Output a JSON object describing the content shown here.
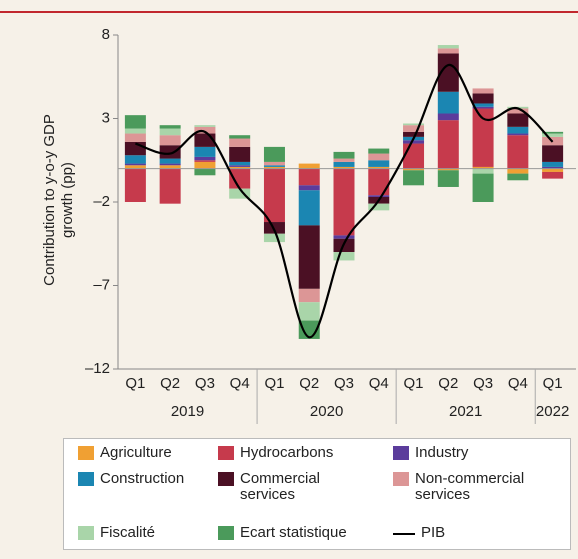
{
  "chart_data": {
    "type": "stacked_bar_line",
    "y_label": [
      "Contribution to y-o-y  GDP",
      "growth (pp)"
    ],
    "categories": [
      "Q1",
      "Q2",
      "Q3",
      "Q4",
      "Q1",
      "Q2",
      "Q3",
      "Q4",
      "Q1",
      "Q2",
      "Q3",
      "Q4",
      "Q1"
    ],
    "year_groups": [
      {
        "label": "2019",
        "span": 4
      },
      {
        "label": "2020",
        "span": 4
      },
      {
        "label": "2021",
        "span": 4
      },
      {
        "label": "2022",
        "span": 1
      }
    ],
    "ylim": [
      -12,
      8
    ],
    "yticks": [
      8,
      3,
      {
        "value": -2,
        "label": "–2"
      },
      {
        "value": -7,
        "label": "–7"
      },
      {
        "value": -12,
        "label": "–12"
      }
    ],
    "series": [
      {
        "name": "Agriculture",
        "color": "#f0a033",
        "values": [
          0.2,
          0.2,
          0.4,
          0.1,
          0.1,
          0.3,
          0.1,
          0.1,
          -0.1,
          -0.1,
          0.1,
          -0.3,
          -0.2
        ]
      },
      {
        "name": "Hydrocarbons",
        "color": "#c63a4c",
        "values": [
          -2.0,
          -2.1,
          0.1,
          -1.2,
          -3.2,
          -1.0,
          -4.0,
          -1.6,
          1.5,
          2.9,
          3.5,
          2.0,
          -0.4
        ]
      },
      {
        "name": "Industry",
        "color": "#5b3c9c",
        "values": [
          0.1,
          0.1,
          0.2,
          0.1,
          0.0,
          -0.3,
          -0.2,
          -0.1,
          0.2,
          0.4,
          0.1,
          0.1,
          0.1
        ]
      },
      {
        "name": "Construction",
        "color": "#1b86b2",
        "values": [
          0.5,
          0.3,
          0.6,
          0.2,
          0.1,
          -2.1,
          0.3,
          0.4,
          0.2,
          1.3,
          0.2,
          0.4,
          0.3
        ]
      },
      {
        "name": "Commercial services",
        "color": "#4b1024",
        "values": [
          0.8,
          0.8,
          0.8,
          0.9,
          -0.7,
          -3.8,
          -0.8,
          -0.4,
          0.3,
          2.3,
          0.6,
          0.8,
          1.0
        ]
      },
      {
        "name": "Non-commercial services",
        "color": "#dc9696",
        "values": [
          0.5,
          0.6,
          0.4,
          0.5,
          0.2,
          -0.8,
          0.2,
          0.4,
          0.4,
          0.3,
          0.3,
          0.3,
          0.5
        ]
      },
      {
        "name": "Fiscalité",
        "color": "#a9d5a9",
        "values": [
          0.3,
          0.4,
          0.1,
          -0.6,
          -0.5,
          -1.1,
          -0.5,
          -0.4,
          0.1,
          0.2,
          -0.3,
          0.1,
          0.2
        ]
      },
      {
        "name": "Ecart statistique",
        "color": "#4b9a5b",
        "values": [
          0.8,
          0.2,
          -0.4,
          0.2,
          0.9,
          -1.1,
          0.4,
          0.3,
          -0.9,
          -1.0,
          -1.7,
          -0.4,
          0.1
        ]
      }
    ],
    "line": {
      "name": "PIB",
      "color": "#000000",
      "values": [
        1.5,
        0.9,
        2.2,
        -1.2,
        -3.7,
        -10.1,
        -4.5,
        -1.9,
        1.8,
        6.2,
        3.0,
        3.6,
        1.6
      ]
    }
  }
}
